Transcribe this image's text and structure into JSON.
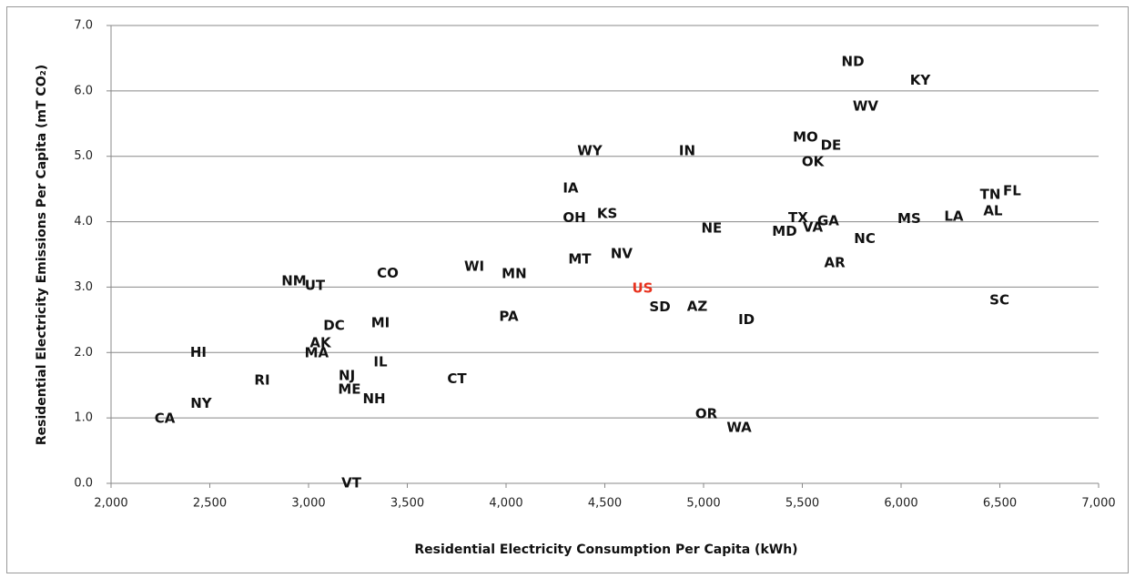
{
  "chart_data": {
    "type": "scatter",
    "xlabel": "Residential Electricity Consumption Per Capita (kWh)",
    "ylabel": "Residential Electricity Emissions  Per Capita (mT CO₂)",
    "labels": [
      "ND",
      "KY",
      "WV",
      "MO",
      "DE",
      "OK",
      "WY",
      "IN",
      "IA",
      "OH",
      "KS",
      "NE",
      "TX",
      "VA",
      "GA",
      "MD",
      "MS",
      "LA",
      "TN",
      "FL",
      "AL",
      "NC",
      "AR",
      "SC",
      "NV",
      "MT",
      "WI",
      "MN",
      "CO",
      "NM",
      "UT",
      "US",
      "SD",
      "AZ",
      "ID",
      "PA",
      "MI",
      "DC",
      "AK",
      "MA",
      "HI",
      "IL",
      "CT",
      "RI",
      "NJ",
      "ME",
      "NH",
      "NY",
      "CA",
      "OR",
      "WA",
      "VT"
    ],
    "x": [
      5756,
      6097,
      5820,
      5516,
      5645,
      5553,
      4424,
      4917,
      4327,
      4346,
      4512,
      5041,
      5479,
      5553,
      5631,
      5410,
      6041,
      6267,
      6452,
      6562,
      6465,
      5816,
      5664,
      6498,
      4585,
      4373,
      3839,
      4041,
      3401,
      2926,
      3032,
      4691,
      4779,
      4968,
      5217,
      4014,
      3364,
      3129,
      3060,
      3041,
      2442,
      3364,
      3751,
      2765,
      3194,
      3207,
      3332,
      2456,
      2272,
      5014,
      5180,
      3217
    ],
    "values": [
      6.44,
      6.16,
      5.76,
      5.29,
      5.16,
      4.91,
      5.08,
      5.08,
      4.51,
      4.06,
      4.12,
      3.9,
      4.06,
      3.91,
      4.01,
      3.85,
      4.04,
      4.08,
      4.41,
      4.47,
      4.16,
      3.74,
      3.37,
      2.8,
      3.51,
      3.42,
      3.31,
      3.2,
      3.21,
      3.09,
      3.02,
      2.98,
      2.69,
      2.7,
      2.5,
      2.55,
      2.45,
      2.41,
      2.14,
      1.99,
      2.0,
      1.85,
      1.59,
      1.57,
      1.64,
      1.43,
      1.29,
      1.22,
      0.99,
      1.06,
      0.85,
      0.0
    ],
    "colors": [
      "#111111",
      "#111111",
      "#111111",
      "#111111",
      "#111111",
      "#111111",
      "#111111",
      "#111111",
      "#111111",
      "#111111",
      "#111111",
      "#111111",
      "#111111",
      "#111111",
      "#111111",
      "#111111",
      "#111111",
      "#111111",
      "#111111",
      "#111111",
      "#111111",
      "#111111",
      "#111111",
      "#111111",
      "#111111",
      "#111111",
      "#111111",
      "#111111",
      "#111111",
      "#111111",
      "#111111",
      "#e8321e",
      "#111111",
      "#111111",
      "#111111",
      "#111111",
      "#111111",
      "#111111",
      "#111111",
      "#111111",
      "#111111",
      "#111111",
      "#111111",
      "#111111",
      "#111111",
      "#111111",
      "#111111",
      "#111111",
      "#111111",
      "#111111",
      "#111111",
      "#111111"
    ],
    "xlim": [
      2000,
      7000
    ],
    "ylim": [
      0,
      7
    ],
    "xticks": [
      {
        "value": 2000,
        "label": "2,000"
      },
      {
        "value": 2500,
        "label": "2,500"
      },
      {
        "value": 3000,
        "label": "3,000"
      },
      {
        "value": 3500,
        "label": "3,500"
      },
      {
        "value": 4000,
        "label": "4,000"
      },
      {
        "value": 4500,
        "label": "4,500"
      },
      {
        "value": 5000,
        "label": "5,000"
      },
      {
        "value": 5500,
        "label": "5,500"
      },
      {
        "value": 6000,
        "label": "6,000"
      },
      {
        "value": 6500,
        "label": "6,500"
      },
      {
        "value": 7000,
        "label": "7,000"
      }
    ],
    "yticks": [
      {
        "value": 0,
        "label": "0.0"
      },
      {
        "value": 1,
        "label": "1.0"
      },
      {
        "value": 2,
        "label": "2.0"
      },
      {
        "value": 3,
        "label": "3.0"
      },
      {
        "value": 4,
        "label": "4.0"
      },
      {
        "value": 5,
        "label": "5.0"
      },
      {
        "value": 6,
        "label": "6.0"
      },
      {
        "value": 7,
        "label": "7.0"
      }
    ],
    "grid": true
  }
}
